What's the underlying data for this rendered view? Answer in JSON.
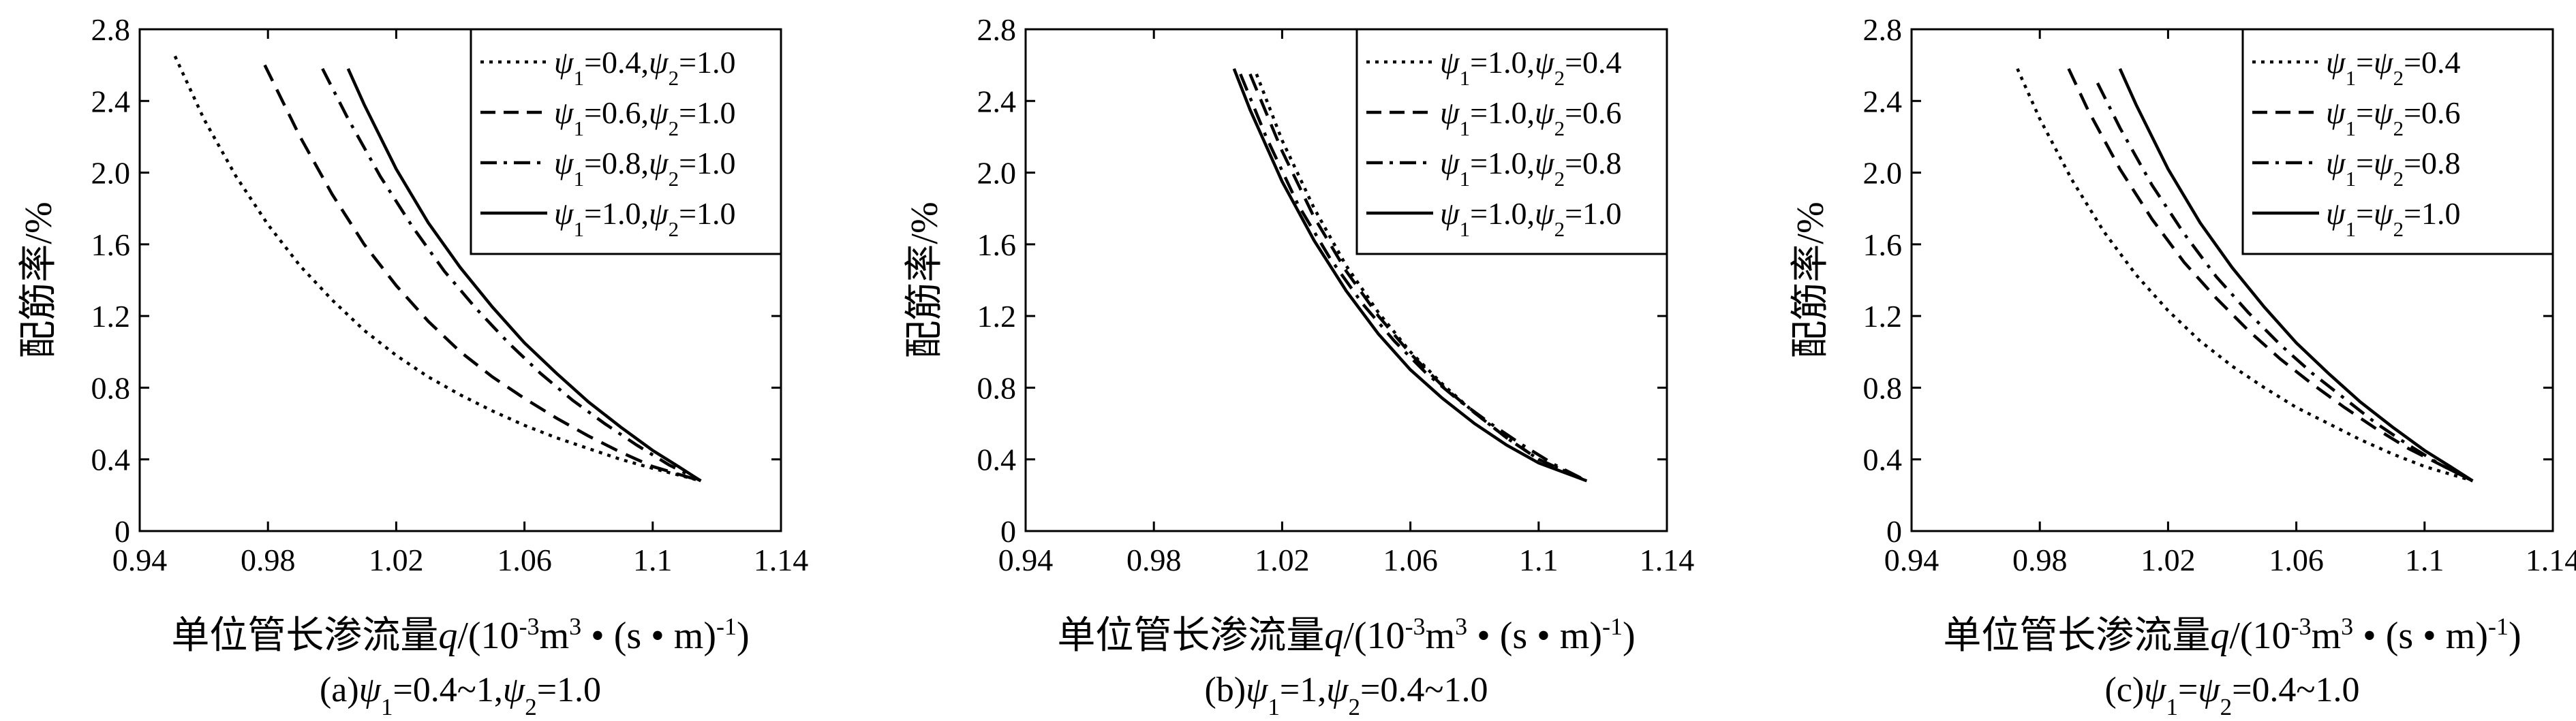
{
  "chart_data": [
    {
      "type": "line",
      "caption": "(a)ψ1=0.4~1,ψ2=1.0",
      "caption_parts": [
        {
          "t": "(a)"
        },
        {
          "t": "ψ",
          "i": true
        },
        {
          "t": "1",
          "sub": true
        },
        {
          "t": "=0.4~1,"
        },
        {
          "t": "ψ",
          "i": true
        },
        {
          "t": "2",
          "sub": true
        },
        {
          "t": "=1.0"
        }
      ],
      "xlabel": "单位管长渗流量q/(10-3m3·(s·m)-1)",
      "ylabel": "配筋率/%",
      "xlim": [
        0.94,
        1.14
      ],
      "ylim": [
        0,
        2.8
      ],
      "xticks": [
        "0.94",
        "0.98",
        "1.02",
        "1.06",
        "1.1",
        "1.14"
      ],
      "yticks": [
        "0",
        "0.4",
        "0.8",
        "1.2",
        "1.6",
        "2.0",
        "2.4",
        "2.8"
      ],
      "legend_position": "top-right",
      "series": [
        {
          "name": "ψ1=0.4,ψ2=1.0",
          "style": "dotted",
          "name_parts": [
            {
              "t": "ψ",
              "i": true
            },
            {
              "t": "1",
              "sub": true
            },
            {
              "t": "=0.4,"
            },
            {
              "t": "ψ",
              "i": true
            },
            {
              "t": "2",
              "sub": true
            },
            {
              "t": "=1.0"
            }
          ],
          "x": [
            0.951,
            0.96,
            0.97,
            0.98,
            0.99,
            1.0,
            1.01,
            1.02,
            1.03,
            1.04,
            1.05,
            1.06,
            1.07,
            1.08,
            1.09,
            1.1,
            1.115
          ],
          "y": [
            2.65,
            2.3,
            1.98,
            1.71,
            1.48,
            1.29,
            1.12,
            0.98,
            0.86,
            0.76,
            0.67,
            0.59,
            0.52,
            0.46,
            0.4,
            0.35,
            0.28
          ]
        },
        {
          "name": "ψ1=0.6,ψ2=1.0",
          "style": "dashed",
          "name_parts": [
            {
              "t": "ψ",
              "i": true
            },
            {
              "t": "1",
              "sub": true
            },
            {
              "t": "=0.6,"
            },
            {
              "t": "ψ",
              "i": true
            },
            {
              "t": "2",
              "sub": true
            },
            {
              "t": "=1.0"
            }
          ],
          "x": [
            0.979,
            0.99,
            1.0,
            1.01,
            1.02,
            1.03,
            1.04,
            1.05,
            1.06,
            1.07,
            1.08,
            1.09,
            1.1,
            1.115
          ],
          "y": [
            2.6,
            2.2,
            1.88,
            1.6,
            1.37,
            1.17,
            1.0,
            0.86,
            0.74,
            0.63,
            0.53,
            0.44,
            0.36,
            0.28
          ]
        },
        {
          "name": "ψ1=0.8,ψ2=1.0",
          "style": "dashdot",
          "name_parts": [
            {
              "t": "ψ",
              "i": true
            },
            {
              "t": "1",
              "sub": true
            },
            {
              "t": "=0.8,"
            },
            {
              "t": "ψ",
              "i": true
            },
            {
              "t": "2",
              "sub": true
            },
            {
              "t": "=1.0"
            }
          ],
          "x": [
            0.997,
            1.005,
            1.015,
            1.025,
            1.035,
            1.045,
            1.055,
            1.065,
            1.075,
            1.085,
            1.095,
            1.105,
            1.115
          ],
          "y": [
            2.58,
            2.3,
            1.98,
            1.7,
            1.45,
            1.24,
            1.05,
            0.88,
            0.73,
            0.6,
            0.48,
            0.37,
            0.28
          ]
        },
        {
          "name": "ψ1=1.0,ψ2=1.0",
          "style": "solid",
          "name_parts": [
            {
              "t": "ψ",
              "i": true
            },
            {
              "t": "1",
              "sub": true
            },
            {
              "t": "=1.0,"
            },
            {
              "t": "ψ",
              "i": true
            },
            {
              "t": "2",
              "sub": true
            },
            {
              "t": "=1.0"
            }
          ],
          "x": [
            1.005,
            1.01,
            1.02,
            1.03,
            1.04,
            1.05,
            1.06,
            1.07,
            1.08,
            1.09,
            1.1,
            1.108,
            1.115
          ],
          "y": [
            2.58,
            2.38,
            2.02,
            1.72,
            1.47,
            1.25,
            1.05,
            0.88,
            0.72,
            0.58,
            0.45,
            0.36,
            0.28
          ]
        }
      ]
    },
    {
      "type": "line",
      "caption": "(b)ψ1=1,ψ2=0.4~1.0",
      "caption_parts": [
        {
          "t": "(b)"
        },
        {
          "t": "ψ",
          "i": true
        },
        {
          "t": "1",
          "sub": true
        },
        {
          "t": "=1,"
        },
        {
          "t": "ψ",
          "i": true
        },
        {
          "t": "2",
          "sub": true
        },
        {
          "t": "=0.4~1.0"
        }
      ],
      "xlabel": "单位管长渗流量q/(10-3m3·(s·m)-1)",
      "ylabel": "配筋率/%",
      "xlim": [
        0.94,
        1.14
      ],
      "ylim": [
        0,
        2.8
      ],
      "xticks": [
        "0.94",
        "0.98",
        "1.02",
        "1.06",
        "1.1",
        "1.14"
      ],
      "yticks": [
        "0",
        "0.4",
        "0.8",
        "1.2",
        "1.6",
        "2.0",
        "2.4",
        "2.8"
      ],
      "legend_position": "top-right",
      "series": [
        {
          "name": "ψ1=1.0,ψ2=0.4",
          "style": "dotted",
          "name_parts": [
            {
              "t": "ψ",
              "i": true
            },
            {
              "t": "1",
              "sub": true
            },
            {
              "t": "=1.0,"
            },
            {
              "t": "ψ",
              "i": true
            },
            {
              "t": "2",
              "sub": true
            },
            {
              "t": "=0.4"
            }
          ],
          "x": [
            1.012,
            1.02,
            1.03,
            1.04,
            1.05,
            1.06,
            1.07,
            1.08,
            1.09,
            1.1,
            1.115
          ],
          "y": [
            2.55,
            2.18,
            1.8,
            1.48,
            1.22,
            1.0,
            0.82,
            0.66,
            0.52,
            0.4,
            0.28
          ]
        },
        {
          "name": "ψ1=1.0,ψ2=0.6",
          "style": "dashed",
          "name_parts": [
            {
              "t": "ψ",
              "i": true
            },
            {
              "t": "1",
              "sub": true
            },
            {
              "t": "=1.0,"
            },
            {
              "t": "ψ",
              "i": true
            },
            {
              "t": "2",
              "sub": true
            },
            {
              "t": "=0.6"
            }
          ],
          "x": [
            1.01,
            1.02,
            1.03,
            1.04,
            1.05,
            1.06,
            1.07,
            1.08,
            1.09,
            1.1,
            1.115
          ],
          "y": [
            2.55,
            2.12,
            1.75,
            1.45,
            1.2,
            0.99,
            0.81,
            0.66,
            0.52,
            0.4,
            0.28
          ]
        },
        {
          "name": "ψ1=1.0,ψ2=0.8",
          "style": "dashdot",
          "name_parts": [
            {
              "t": "ψ",
              "i": true
            },
            {
              "t": "1",
              "sub": true
            },
            {
              "t": "=1.0,"
            },
            {
              "t": "ψ",
              "i": true
            },
            {
              "t": "2",
              "sub": true
            },
            {
              "t": "=0.8"
            }
          ],
          "x": [
            1.007,
            1.015,
            1.025,
            1.035,
            1.045,
            1.055,
            1.065,
            1.075,
            1.085,
            1.095,
            1.105,
            1.115
          ],
          "y": [
            2.55,
            2.2,
            1.82,
            1.52,
            1.27,
            1.06,
            0.88,
            0.73,
            0.6,
            0.48,
            0.37,
            0.28
          ]
        },
        {
          "name": "ψ1=1.0,ψ2=1.0",
          "style": "solid",
          "name_parts": [
            {
              "t": "ψ",
              "i": true
            },
            {
              "t": "1",
              "sub": true
            },
            {
              "t": "=1.0,"
            },
            {
              "t": "ψ",
              "i": true
            },
            {
              "t": "2",
              "sub": true
            },
            {
              "t": "=1.0"
            }
          ],
          "x": [
            1.005,
            1.01,
            1.02,
            1.03,
            1.04,
            1.05,
            1.06,
            1.07,
            1.08,
            1.09,
            1.1,
            1.115
          ],
          "y": [
            2.58,
            2.35,
            1.95,
            1.62,
            1.34,
            1.1,
            0.9,
            0.74,
            0.6,
            0.48,
            0.38,
            0.28
          ]
        }
      ]
    },
    {
      "type": "line",
      "caption": "(c)ψ1=ψ2=0.4~1.0",
      "caption_parts": [
        {
          "t": "(c)"
        },
        {
          "t": "ψ",
          "i": true
        },
        {
          "t": "1",
          "sub": true
        },
        {
          "t": "="
        },
        {
          "t": "ψ",
          "i": true
        },
        {
          "t": "2",
          "sub": true
        },
        {
          "t": "=0.4~1.0"
        }
      ],
      "xlabel": "单位管长渗流量q/(10-3m3·(s·m)-1)",
      "ylabel": "配筋率/%",
      "xlim": [
        0.94,
        1.14
      ],
      "ylim": [
        0,
        2.8
      ],
      "xticks": [
        "0.94",
        "0.98",
        "1.02",
        "1.06",
        "1.1",
        "1.14"
      ],
      "yticks": [
        "0",
        "0.4",
        "0.8",
        "1.2",
        "1.6",
        "2.0",
        "2.4",
        "2.8"
      ],
      "legend_position": "top-right",
      "series": [
        {
          "name": "ψ1=ψ2=0.4",
          "style": "dotted",
          "name_parts": [
            {
              "t": "ψ",
              "i": true
            },
            {
              "t": "1",
              "sub": true
            },
            {
              "t": "="
            },
            {
              "t": "ψ",
              "i": true
            },
            {
              "t": "2",
              "sub": true
            },
            {
              "t": "=0.4"
            }
          ],
          "x": [
            0.973,
            0.98,
            0.99,
            1.0,
            1.01,
            1.02,
            1.03,
            1.04,
            1.05,
            1.06,
            1.07,
            1.08,
            1.09,
            1.1,
            1.115
          ],
          "y": [
            2.58,
            2.3,
            1.96,
            1.67,
            1.43,
            1.23,
            1.06,
            0.92,
            0.8,
            0.69,
            0.6,
            0.51,
            0.43,
            0.36,
            0.28
          ]
        },
        {
          "name": "ψ1=ψ2=0.6",
          "style": "dashed",
          "name_parts": [
            {
              "t": "ψ",
              "i": true
            },
            {
              "t": "1",
              "sub": true
            },
            {
              "t": "="
            },
            {
              "t": "ψ",
              "i": true
            },
            {
              "t": "2",
              "sub": true
            },
            {
              "t": "=0.6"
            }
          ],
          "x": [
            0.989,
            0.995,
            1.005,
            1.015,
            1.025,
            1.035,
            1.045,
            1.055,
            1.065,
            1.075,
            1.085,
            1.095,
            1.105,
            1.115
          ],
          "y": [
            2.58,
            2.35,
            2.02,
            1.74,
            1.5,
            1.3,
            1.12,
            0.96,
            0.82,
            0.69,
            0.57,
            0.46,
            0.37,
            0.28
          ]
        },
        {
          "name": "ψ1=ψ2=0.8",
          "style": "dashdot",
          "name_parts": [
            {
              "t": "ψ",
              "i": true
            },
            {
              "t": "1",
              "sub": true
            },
            {
              "t": "="
            },
            {
              "t": "ψ",
              "i": true
            },
            {
              "t": "2",
              "sub": true
            },
            {
              "t": "=0.8"
            }
          ],
          "x": [
            0.998,
            1.005,
            1.015,
            1.025,
            1.035,
            1.045,
            1.055,
            1.065,
            1.075,
            1.085,
            1.095,
            1.105,
            1.115
          ],
          "y": [
            2.5,
            2.25,
            1.93,
            1.66,
            1.42,
            1.22,
            1.04,
            0.88,
            0.74,
            0.6,
            0.48,
            0.37,
            0.28
          ]
        },
        {
          "name": "ψ1=ψ2=1.0",
          "style": "solid",
          "name_parts": [
            {
              "t": "ψ",
              "i": true
            },
            {
              "t": "1",
              "sub": true
            },
            {
              "t": "="
            },
            {
              "t": "ψ",
              "i": true
            },
            {
              "t": "2",
              "sub": true
            },
            {
              "t": "=1.0"
            }
          ],
          "x": [
            1.005,
            1.01,
            1.02,
            1.03,
            1.04,
            1.05,
            1.06,
            1.07,
            1.08,
            1.09,
            1.1,
            1.108,
            1.115
          ],
          "y": [
            2.58,
            2.38,
            2.02,
            1.72,
            1.47,
            1.25,
            1.05,
            0.88,
            0.72,
            0.58,
            0.45,
            0.36,
            0.28
          ]
        }
      ]
    }
  ]
}
